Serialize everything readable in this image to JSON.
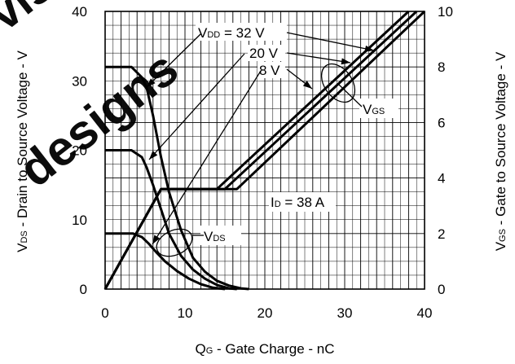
{
  "chart_data": {
    "type": "line",
    "xlabel": "Q_G - Gate Charge - nC",
    "xlabel_parts": {
      "main": "Q",
      "sub": "G",
      "rest": " - Gate Charge - nC"
    },
    "ylabel_left": "V_DS - Drain to Source Voltage - V",
    "ylabel_left_parts": {
      "main": "V",
      "sub": "DS",
      "rest": " - Drain to Source Voltage - V"
    },
    "ylabel_right": "V_GS - Gate to Source Voltage - V",
    "ylabel_right_parts": {
      "main": "V",
      "sub": "GS",
      "rest": " - Gate to Source Voltage - V"
    },
    "xlim": [
      0,
      40
    ],
    "ylim_left": [
      0,
      40
    ],
    "ylim_right": [
      0,
      10
    ],
    "x_ticks": [
      "0",
      "10",
      "20",
      "30",
      "40"
    ],
    "y_left_ticks": [
      "0",
      "10",
      "20",
      "30",
      "40"
    ],
    "y_right_ticks": [
      "0",
      "2",
      "4",
      "6",
      "8",
      "10"
    ],
    "grid": true,
    "series": [
      {
        "name": "V_DS at 32 V",
        "axis": "left",
        "x": [
          0,
          3.3,
          4.6,
          5.2,
          6,
          7,
          8,
          9.5,
          11,
          12.5,
          14,
          15.5,
          17,
          18
        ],
        "y": [
          32,
          32,
          30.5,
          29,
          25,
          19,
          14,
          8.5,
          4.5,
          2.5,
          1.2,
          0.5,
          0.1,
          0
        ]
      },
      {
        "name": "V_DS at 20 V",
        "axis": "left",
        "x": [
          0,
          3.3,
          4.6,
          5.2,
          6,
          7,
          8,
          9.5,
          11,
          12.5,
          14,
          15.5,
          16.5
        ],
        "y": [
          20,
          20,
          19,
          17.5,
          15,
          11.5,
          8,
          4.8,
          2.8,
          1.5,
          0.6,
          0.1,
          0
        ]
      },
      {
        "name": "V_DS at 8 V",
        "axis": "left",
        "x": [
          0,
          3.5,
          4.6,
          5.5,
          6.5,
          7.5,
          9,
          10.5,
          12,
          13.5,
          15
        ],
        "y": [
          8,
          8,
          7.5,
          6.5,
          5.2,
          4,
          2.6,
          1.5,
          0.7,
          0.2,
          0
        ]
      },
      {
        "name": "V_GS at 8 V",
        "axis": "right",
        "x": [
          0,
          7,
          14,
          38
        ],
        "y": [
          0,
          3.6,
          3.6,
          10
        ]
      },
      {
        "name": "V_GS at 20 V",
        "axis": "right",
        "x": [
          0,
          7,
          15,
          39
        ],
        "y": [
          0,
          3.6,
          3.6,
          10
        ]
      },
      {
        "name": "V_GS at 32 V",
        "axis": "right",
        "x": [
          0,
          7,
          16.5,
          40
        ],
        "y": [
          0,
          3.6,
          3.6,
          10
        ]
      }
    ],
    "annotations": [
      {
        "id": "vdd32",
        "main": "V",
        "sub": "DD",
        "rest": " = 32 V"
      },
      {
        "id": "vdd20",
        "text": "20 V"
      },
      {
        "id": "vdd8",
        "text": "8 V"
      },
      {
        "id": "vgs",
        "main": "V",
        "sub": "GS"
      },
      {
        "id": "vds",
        "main": "V",
        "sub": "DS"
      },
      {
        "id": "id",
        "main": "I",
        "sub": "D",
        "rest": " = 38 A"
      }
    ],
    "watermark": "vishay designs",
    "colors": {
      "curve": "#000000",
      "grid": "#000000",
      "watermark": "#e8001c"
    }
  }
}
